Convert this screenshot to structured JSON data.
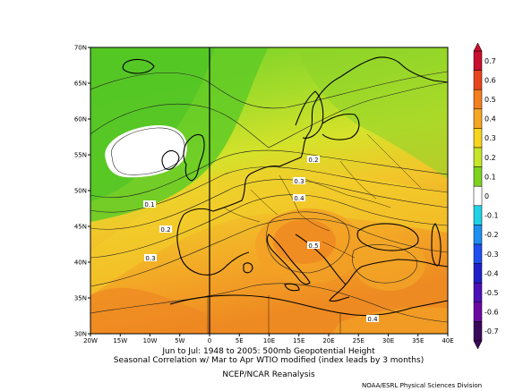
{
  "map": {
    "lat_labels": [
      "70N",
      "65N",
      "60N",
      "55N",
      "50N",
      "45N",
      "40N",
      "35N",
      "30N"
    ],
    "lon_labels": [
      "20W",
      "15W",
      "10W",
      "5W",
      "0",
      "5E",
      "10E",
      "15E",
      "20E",
      "25E",
      "30E",
      "35E",
      "40E"
    ],
    "contour_labels": [
      "0.2",
      "0.3",
      "0.4",
      "0.5",
      "0.1",
      "0.2",
      "0.3",
      "0.4"
    ]
  },
  "colorbar": {
    "labels": [
      "0.7",
      "0.6",
      "0.5",
      "0.4",
      "0.3",
      "0.2",
      "0.1",
      "0",
      "-0.1",
      "-0.2",
      "-0.3",
      "-0.4",
      "-0.5",
      "-0.6",
      "-0.7"
    ],
    "colors": [
      "#c8102e",
      "#e8451f",
      "#f37f1f",
      "#f6a623",
      "#f6d51f",
      "#c6e62b",
      "#7ed321",
      "#ffffff",
      "#1fd1e6",
      "#1f8ff0",
      "#1f4ff0",
      "#2020c8",
      "#4b10b8",
      "#6a0aa0",
      "#3a0a5a"
    ]
  },
  "captions": {
    "line1": "Jun to Jul: 1948 to 2005: 500mb Geopotential Height",
    "line2": "Seasonal Correlation w/ Mar to Apr WTIO modified (index leads by 3 months)",
    "line3": "NCEP/NCAR Reanalysis",
    "credit": "NOAA/ESRL Physical Sciences Division"
  }
}
